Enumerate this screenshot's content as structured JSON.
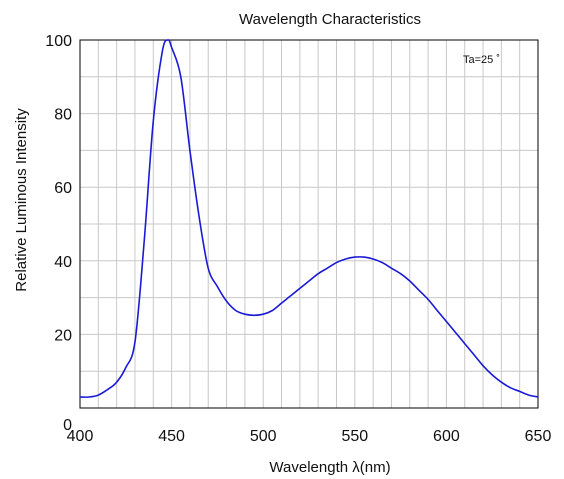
{
  "chart_data": {
    "type": "line",
    "title": "Wavelength Characteristics",
    "xlabel": "Wavelength λ(nm)",
    "ylabel": "Relative Luminous Intensity",
    "annotation": "Ta=25 ˚",
    "xlim": [
      400,
      650
    ],
    "ylim": [
      0,
      100
    ],
    "xticks": [
      400,
      450,
      500,
      550,
      600,
      650
    ],
    "yticks": [
      0,
      20,
      40,
      60,
      80,
      100
    ],
    "grid": true,
    "line_color": "#1a1ad6",
    "series": [
      {
        "x": [
          400,
          405,
          410,
          415,
          420,
          425,
          430,
          435,
          440,
          445,
          448,
          450,
          455,
          460,
          465,
          470,
          475,
          480,
          485,
          490,
          495,
          500,
          505,
          510,
          515,
          520,
          525,
          530,
          535,
          540,
          545,
          550,
          555,
          560,
          565,
          570,
          575,
          580,
          585,
          590,
          595,
          600,
          605,
          610,
          615,
          620,
          625,
          630,
          635,
          640,
          645,
          650
        ],
        "y": [
          3,
          3,
          3.5,
          5,
          7,
          11,
          18,
          45,
          78,
          97,
          100,
          98,
          90,
          70,
          52,
          38,
          33,
          29,
          26.5,
          25.5,
          25.2,
          25.5,
          26.5,
          28.5,
          30.5,
          32.5,
          34.5,
          36.5,
          38,
          39.5,
          40.5,
          41,
          41,
          40.5,
          39.5,
          38,
          36.5,
          34.5,
          32,
          29.5,
          26.5,
          23.5,
          20.5,
          17.5,
          14.5,
          11.5,
          9,
          7,
          5.5,
          4.5,
          3.5,
          3
        ]
      }
    ]
  }
}
